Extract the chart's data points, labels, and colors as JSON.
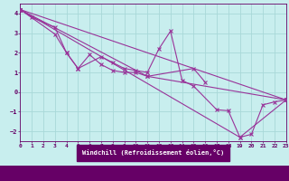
{
  "xlabel": "Windchill (Refroidissement éolien,°C)",
  "xlim": [
    0,
    23
  ],
  "ylim": [
    -2.5,
    4.5
  ],
  "xticks": [
    0,
    1,
    2,
    3,
    4,
    5,
    6,
    7,
    8,
    9,
    10,
    11,
    12,
    13,
    14,
    15,
    16,
    17,
    18,
    19,
    20,
    21,
    22,
    23
  ],
  "yticks": [
    -2,
    -1,
    0,
    1,
    2,
    3,
    4
  ],
  "background_color": "#c8eeee",
  "grid_color": "#a8d8d8",
  "line_color": "#993399",
  "tick_color": "#660066",
  "xlabel_bg": "#660066",
  "xlabel_fg": "#ffffff",
  "lines": [
    {
      "x": [
        0,
        1,
        3,
        4,
        5,
        6,
        7,
        8,
        9,
        10,
        11,
        15,
        16
      ],
      "y": [
        4.2,
        3.8,
        3.3,
        2.0,
        1.2,
        1.9,
        1.4,
        1.1,
        1.0,
        1.0,
        0.8,
        1.2,
        0.5
      ]
    },
    {
      "x": [
        0,
        3,
        4,
        5,
        7,
        8,
        9,
        10,
        11,
        12,
        13,
        14,
        15,
        17,
        18,
        19,
        20,
        21,
        22,
        23
      ],
      "y": [
        4.2,
        2.95,
        2.0,
        1.2,
        1.8,
        1.5,
        1.2,
        1.1,
        1.0,
        2.2,
        3.1,
        0.6,
        0.3,
        -0.9,
        -0.95,
        -2.3,
        -2.15,
        -0.65,
        -0.5,
        -0.4
      ]
    },
    {
      "x": [
        0,
        23
      ],
      "y": [
        4.2,
        -0.4
      ]
    },
    {
      "x": [
        0,
        11,
        23
      ],
      "y": [
        4.2,
        0.8,
        -0.4
      ]
    },
    {
      "x": [
        0,
        19,
        23
      ],
      "y": [
        4.2,
        -2.3,
        -0.4
      ]
    }
  ]
}
